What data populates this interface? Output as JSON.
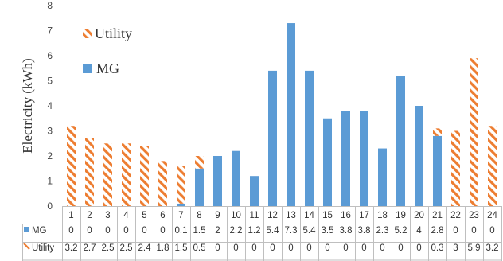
{
  "chart_data": {
    "type": "bar",
    "ylabel": "Electricity (kWh)",
    "ylim": [
      0,
      8
    ],
    "yticks": [
      0,
      1,
      2,
      3,
      4,
      5,
      6,
      7,
      8
    ],
    "categories": [
      "1",
      "2",
      "3",
      "4",
      "5",
      "6",
      "7",
      "8",
      "9",
      "10",
      "11",
      "12",
      "13",
      "14",
      "15",
      "16",
      "17",
      "18",
      "19",
      "20",
      "21",
      "22",
      "23",
      "24"
    ],
    "series": [
      {
        "name": "MG",
        "color": "#5B9BD5",
        "pattern": "solid",
        "values": [
          0,
          0,
          0,
          0,
          0,
          0,
          0.1,
          1.5,
          2,
          2.2,
          1.2,
          5.4,
          7.3,
          5.4,
          3.5,
          3.8,
          3.8,
          2.3,
          5.2,
          4,
          2.8,
          0,
          0,
          0
        ],
        "table_labels": [
          "0",
          "0",
          "0",
          "0",
          "0",
          "0",
          "0.1",
          "1.5",
          "2",
          "2.2",
          "1.2",
          "5.4",
          "7.3",
          "5.4",
          "3.5",
          "3.8",
          "3.8",
          "2.3",
          "5.2",
          "4",
          "2.8",
          "0",
          "0",
          "0"
        ]
      },
      {
        "name": "Utility",
        "color": "#ED7D31",
        "pattern": "diagonal-stripes",
        "values": [
          3.2,
          2.7,
          2.5,
          2.5,
          2.4,
          1.8,
          1.5,
          0.5,
          0,
          0,
          0,
          0,
          0,
          0,
          0,
          0,
          0,
          0,
          0,
          0,
          0.3,
          3,
          5.9,
          3.2
        ],
        "table_labels": [
          "3.2",
          "2.7",
          "2.5",
          "2.5",
          "2.4",
          "1.8",
          "1.5",
          "0.5",
          "0",
          "0",
          "0",
          "0",
          "0",
          "0",
          "0",
          "0",
          "0",
          "0",
          "0",
          "0",
          "0.3",
          "3",
          "5.9",
          "3.2"
        ]
      }
    ],
    "legend": {
      "placement": "top-left",
      "entries": [
        "Utility",
        "MG"
      ]
    },
    "grid": false,
    "data_table": true
  }
}
